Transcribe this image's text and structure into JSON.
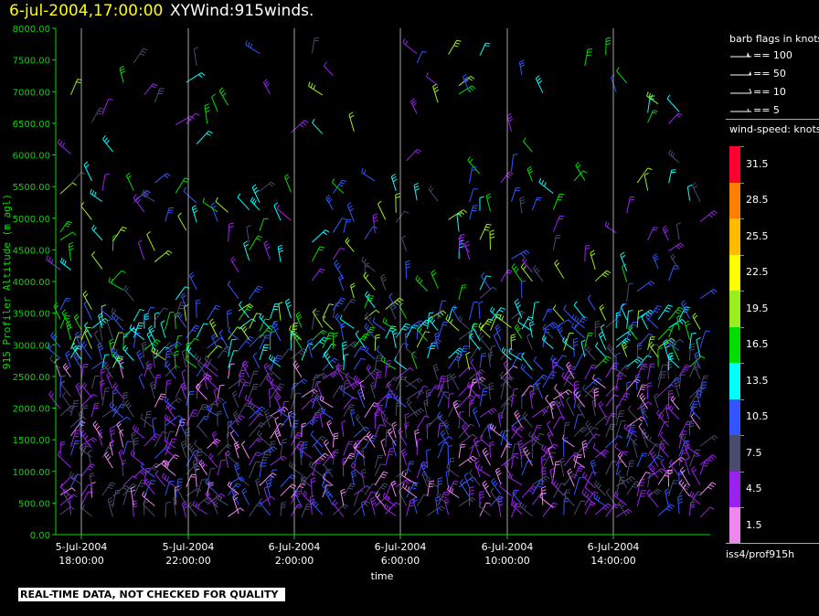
{
  "title": {
    "date": "6-jul-2004,17:00:00",
    "name": "XYWind:915winds."
  },
  "chart_data": {
    "type": "wind-barb",
    "ylabel": "915 Profiler Altitude (m agl)",
    "xlabel": "time",
    "ylim": [
      0,
      8000
    ],
    "yticks": [
      "0.00",
      "500.00",
      "1000.00",
      "1500.00",
      "2000.00",
      "2500.00",
      "3000.00",
      "3500.00",
      "4000.00",
      "4500.00",
      "5000.00",
      "5500.00",
      "6000.00",
      "6500.00",
      "7000.00",
      "7500.00",
      "8000.00"
    ],
    "xticks": [
      {
        "date": "5-Jul-2004",
        "time": "18:00:00"
      },
      {
        "date": "5-Jul-2004",
        "time": "22:00:00"
      },
      {
        "date": "6-Jul-2004",
        "time": "2:00:00"
      },
      {
        "date": "6-Jul-2004",
        "time": "6:00:00"
      },
      {
        "date": "6-Jul-2004",
        "time": "10:00:00"
      },
      {
        "date": "6-Jul-2004",
        "time": "14:00:00"
      }
    ],
    "grid_x": true
  },
  "barb_legend": {
    "title": "barb flags in knots",
    "rows": [
      {
        "label": "== 100"
      },
      {
        "label": "== 50"
      },
      {
        "label": "== 10"
      },
      {
        "label": "== 5"
      }
    ]
  },
  "colorbar": {
    "title": "wind-speed: knots",
    "entries": [
      {
        "label": "31.5",
        "color": "#ff0033"
      },
      {
        "label": "28.5",
        "color": "#ff7f00"
      },
      {
        "label": "25.5",
        "color": "#ffbb00"
      },
      {
        "label": "22.5",
        "color": "#ffff00"
      },
      {
        "label": "19.5",
        "color": "#99ee22"
      },
      {
        "label": "16.5",
        "color": "#00dd00"
      },
      {
        "label": "13.5",
        "color": "#00ffff"
      },
      {
        "label": "10.5",
        "color": "#3355ff"
      },
      {
        "label": "7.5",
        "color": "#4a4a6e"
      },
      {
        "label": "4.5",
        "color": "#9922ee"
      },
      {
        "label": "1.5",
        "color": "#ee88ee"
      }
    ]
  },
  "source": "iss4/prof915h",
  "disclaimer": "REAL-TIME DATA, NOT CHECKED FOR QUALITY"
}
